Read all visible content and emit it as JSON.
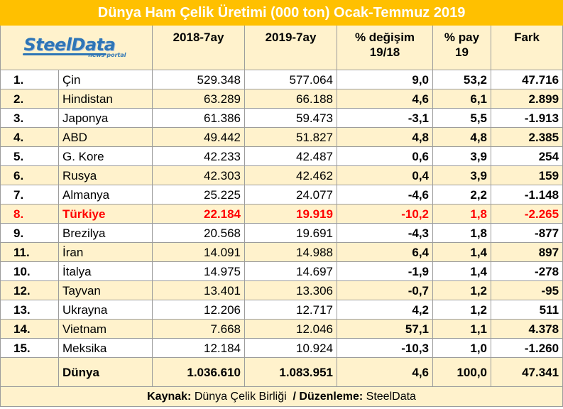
{
  "title": "Dünya Ham Çelik Üretimi (000 ton) Ocak-Temmuz 2019",
  "logo": {
    "main": "SteelData",
    "sub": "news portal"
  },
  "headers": {
    "col_2018": "2018-7ay",
    "col_2019": "2019-7ay",
    "col_change_1": "% değişim",
    "col_change_2": "19/18",
    "col_share_1": "% pay",
    "col_share_2": "19",
    "col_diff": "Fark"
  },
  "rows": [
    {
      "rank": "1.",
      "country": "Çin",
      "y2018": "529.348",
      "y2019": "577.064",
      "change": "9,0",
      "share": "53,2",
      "diff": "47.716"
    },
    {
      "rank": "2.",
      "country": "Hindistan",
      "y2018": "63.289",
      "y2019": "66.188",
      "change": "4,6",
      "share": "6,1",
      "diff": "2.899"
    },
    {
      "rank": "3.",
      "country": "Japonya",
      "y2018": "61.386",
      "y2019": "59.473",
      "change": "-3,1",
      "share": "5,5",
      "diff": "-1.913"
    },
    {
      "rank": "4.",
      "country": "ABD",
      "y2018": "49.442",
      "y2019": "51.827",
      "change": "4,8",
      "share": "4,8",
      "diff": "2.385"
    },
    {
      "rank": "5.",
      "country": "G. Kore",
      "y2018": "42.233",
      "y2019": "42.487",
      "change": "0,6",
      "share": "3,9",
      "diff": "254"
    },
    {
      "rank": "6.",
      "country": "Rusya",
      "y2018": "42.303",
      "y2019": "42.462",
      "change": "0,4",
      "share": "3,9",
      "diff": "159"
    },
    {
      "rank": "7.",
      "country": "Almanya",
      "y2018": "25.225",
      "y2019": "24.077",
      "change": "-4,6",
      "share": "2,2",
      "diff": "-1.148"
    },
    {
      "rank": "8.",
      "country": "Türkiye",
      "y2018": "22.184",
      "y2019": "19.919",
      "change": "-10,2",
      "share": "1,8",
      "diff": "-2.265"
    },
    {
      "rank": "9.",
      "country": "Brezilya",
      "y2018": "20.568",
      "y2019": "19.691",
      "change": "-4,3",
      "share": "1,8",
      "diff": "-877"
    },
    {
      "rank": "11.",
      "country": "İran",
      "y2018": "14.091",
      "y2019": "14.988",
      "change": "6,4",
      "share": "1,4",
      "diff": "897"
    },
    {
      "rank": "10.",
      "country": "İtalya",
      "y2018": "14.975",
      "y2019": "14.697",
      "change": "-1,9",
      "share": "1,4",
      "diff": "-278"
    },
    {
      "rank": "12.",
      "country": "Tayvan",
      "y2018": "13.401",
      "y2019": "13.306",
      "change": "-0,7",
      "share": "1,2",
      "diff": "-95"
    },
    {
      "rank": "13.",
      "country": "Ukrayna",
      "y2018": "12.206",
      "y2019": "12.717",
      "change": "4,2",
      "share": "1,2",
      "diff": "511"
    },
    {
      "rank": "14.",
      "country": "Vietnam",
      "y2018": "7.668",
      "y2019": "12.046",
      "change": "57,1",
      "share": "1,1",
      "diff": "4.378"
    },
    {
      "rank": "15.",
      "country": "Meksika",
      "y2018": "12.184",
      "y2019": "10.924",
      "change": "-10,3",
      "share": "1,0",
      "diff": "-1.260"
    }
  ],
  "total": {
    "country": "Dünya",
    "y2018": "1.036.610",
    "y2019": "1.083.951",
    "change": "4,6",
    "share": "100,0",
    "diff": "47.341"
  },
  "footer": {
    "source_label": "Kaynak:",
    "source_value": " Dünya Çelik Birliği",
    "separator": "  / ",
    "editing_label": "Düzenleme:",
    "editing_value": " SteelData"
  },
  "colors": {
    "title_bg": "#ffc000",
    "alt_row_bg": "#fff2cc",
    "highlight": "#ff0000",
    "logo_blue": "#2e75b6"
  }
}
